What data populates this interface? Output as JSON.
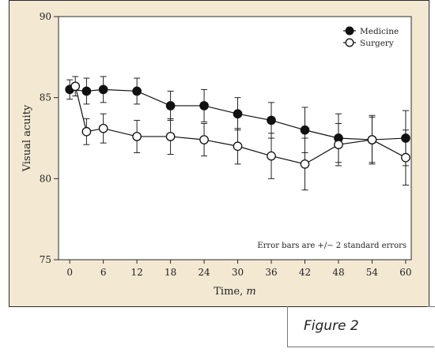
{
  "caption": "Figure 2",
  "chart_data": {
    "type": "line",
    "xlabel_text": "Time,",
    "xlabel_var": "m",
    "ylabel": "Visual acuity",
    "x_ticks": [
      "0",
      "6",
      "12",
      "18",
      "24",
      "30",
      "36",
      "42",
      "48",
      "54",
      "60"
    ],
    "y_ticks": [
      "75",
      "80",
      "85",
      "90"
    ],
    "xlim": [
      -2,
      61
    ],
    "ylim": [
      75,
      90
    ],
    "grid": false,
    "legend_position": "top-right",
    "annotation": "Error bars are +/− 2 standard errors",
    "series": [
      {
        "name": "Medicine",
        "marker": "filled",
        "color": "#111111",
        "x": [
          0,
          3,
          6,
          12,
          18,
          24,
          30,
          36,
          42,
          48,
          54,
          60
        ],
        "y": [
          85.5,
          85.4,
          85.5,
          85.4,
          84.5,
          84.5,
          84.0,
          83.6,
          83.0,
          82.5,
          82.4,
          82.5
        ],
        "err": [
          0.6,
          0.8,
          0.8,
          0.8,
          0.9,
          1.0,
          1.0,
          1.1,
          1.4,
          1.5,
          1.5,
          1.7
        ]
      },
      {
        "name": "Surgery",
        "marker": "open",
        "color": "#111111",
        "x": [
          1,
          3,
          6,
          12,
          18,
          24,
          30,
          36,
          42,
          48,
          54,
          60
        ],
        "y": [
          85.7,
          82.9,
          83.1,
          82.6,
          82.6,
          82.4,
          82.0,
          81.4,
          80.9,
          82.1,
          82.4,
          81.3
        ],
        "err": [
          0.6,
          0.8,
          0.9,
          1.0,
          1.1,
          1.0,
          1.1,
          1.4,
          1.6,
          1.3,
          1.4,
          1.7
        ]
      }
    ]
  }
}
